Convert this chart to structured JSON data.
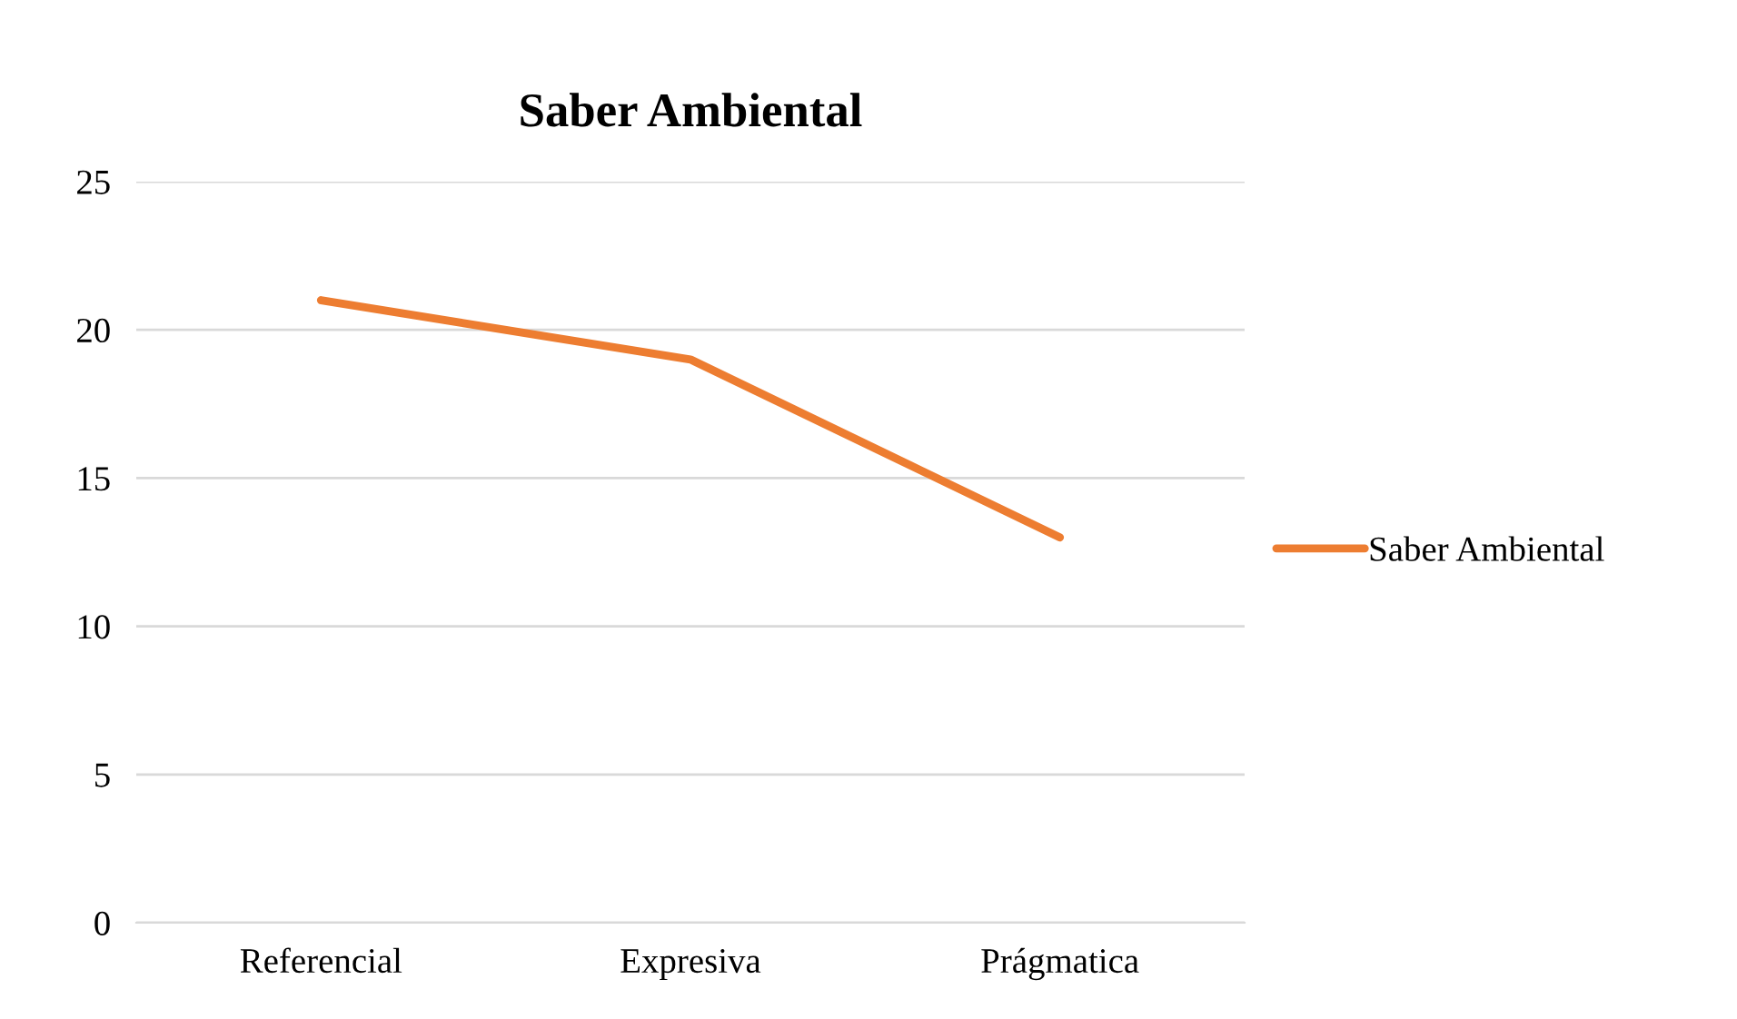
{
  "chart_data": {
    "type": "line",
    "title": "Saber Ambiental",
    "categories": [
      "Referencial",
      "Expresiva",
      "Prágmatica"
    ],
    "series": [
      {
        "name": "Saber Ambiental",
        "color": "#ed7d31",
        "values": [
          21,
          19,
          13
        ]
      }
    ],
    "ylim": [
      0,
      25
    ],
    "yticks": [
      0,
      5,
      10,
      15,
      20,
      25
    ],
    "grid": "y",
    "legend": "right",
    "marker": "none",
    "line_style": "solid"
  }
}
